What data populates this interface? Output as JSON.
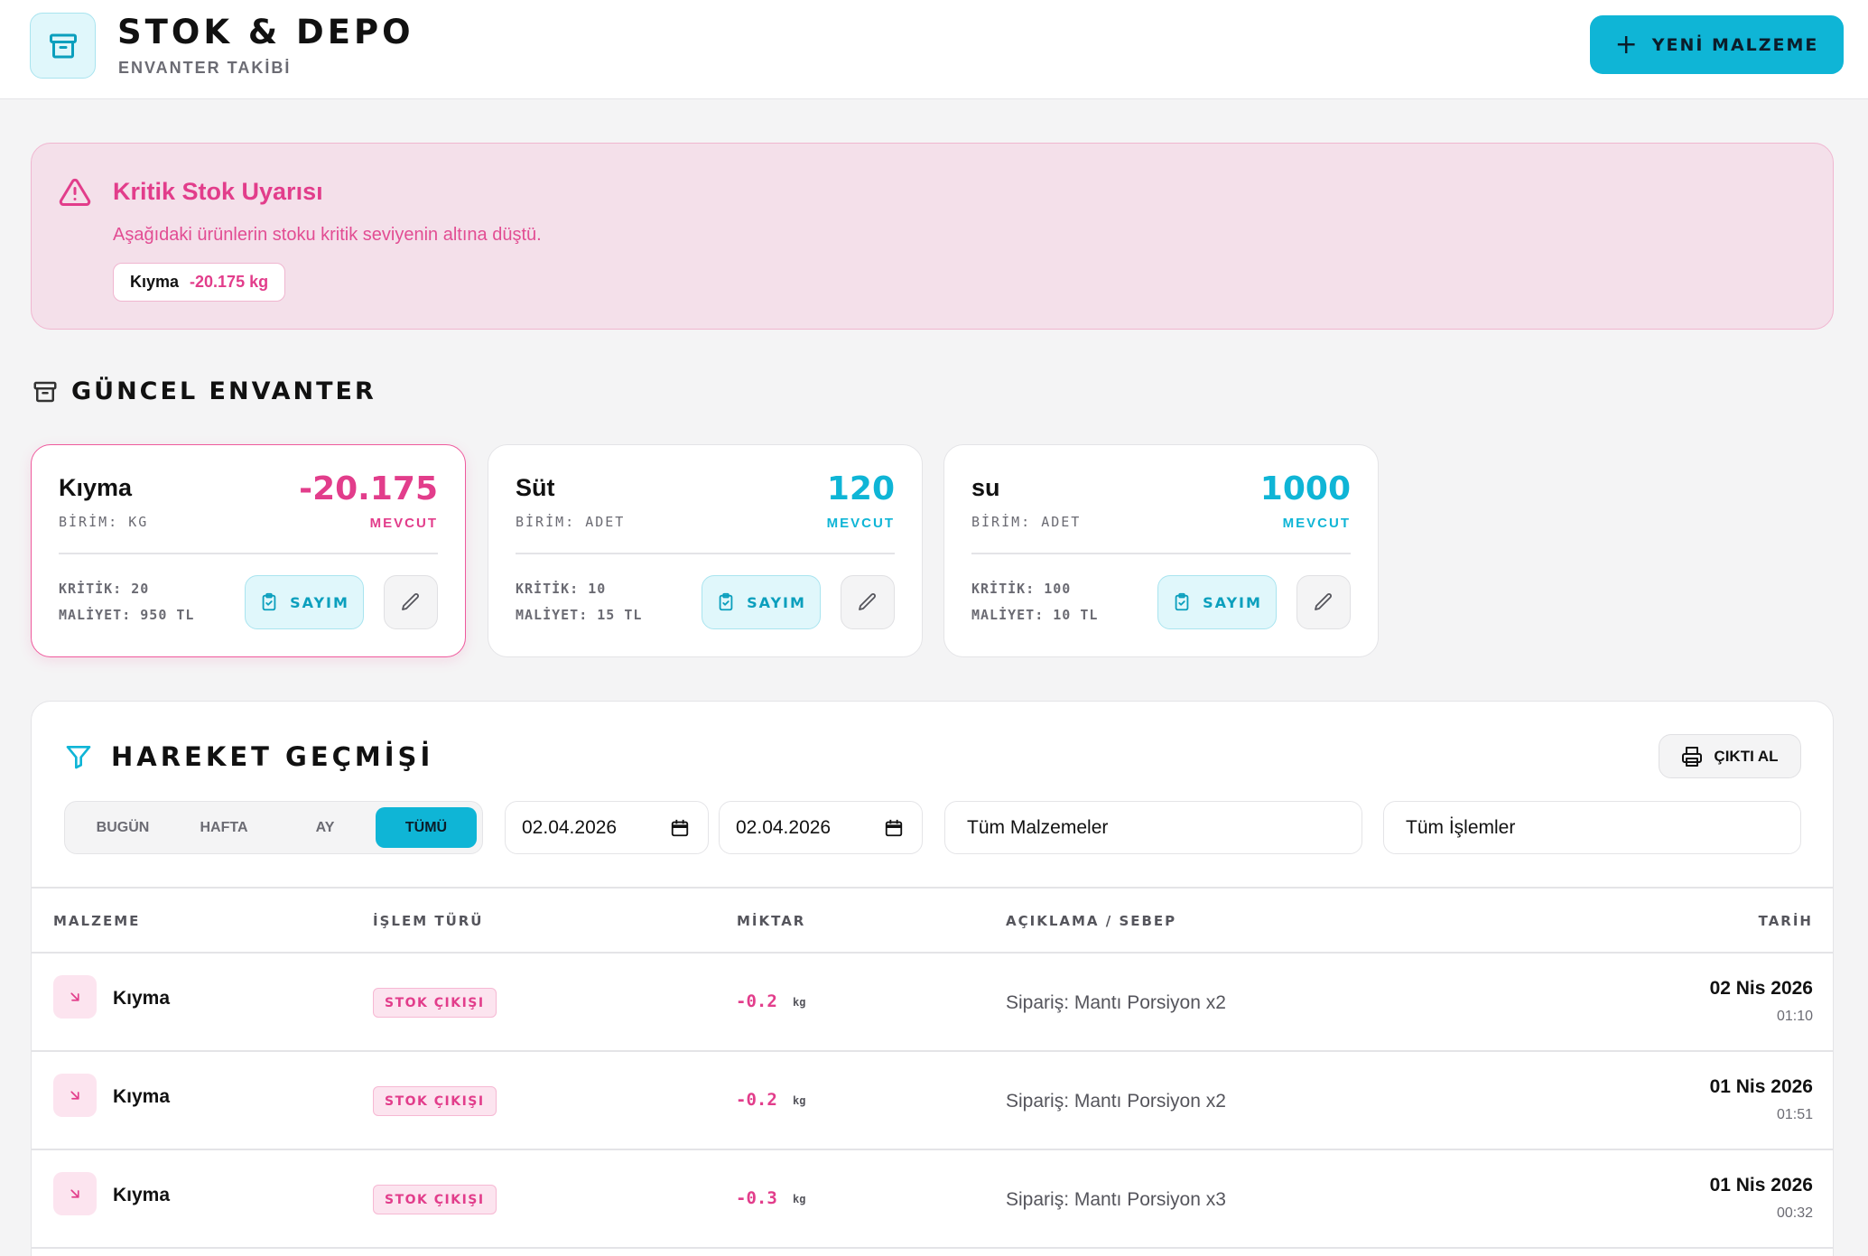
{
  "header": {
    "title": "STOK & DEPO",
    "subtitle": "ENVANTER TAKİBİ",
    "new_button": "YENİ MALZEME"
  },
  "alert": {
    "title": "Kritik Stok Uyarısı",
    "message": "Aşağıdaki ürünlerin stoku kritik seviyenin altına düştü.",
    "items": [
      {
        "name": "Kıyma",
        "value": "-20.175 kg"
      }
    ]
  },
  "inventory": {
    "title": "GÜNCEL ENVANTER",
    "cards": [
      {
        "name": "Kıyma",
        "unit": "BİRİM: KG",
        "qty": "-20.175",
        "qty_label": "MEVCUT",
        "critical": "KRİTİK: 20",
        "cost": "MALİYET: 950 TL",
        "count_label": "SAYIM"
      },
      {
        "name": "Süt",
        "unit": "BİRİM: ADET",
        "qty": "120",
        "qty_label": "MEVCUT",
        "critical": "KRİTİK: 10",
        "cost": "MALİYET: 15 TL",
        "count_label": "SAYIM"
      },
      {
        "name": "su",
        "unit": "BİRİM: ADET",
        "qty": "1000",
        "qty_label": "MEVCUT",
        "critical": "KRİTİK: 100",
        "cost": "MALİYET: 10 TL",
        "count_label": "SAYIM"
      }
    ]
  },
  "history": {
    "title": "HAREKET GEÇMİŞİ",
    "print_button": "ÇIKTI AL",
    "periods": [
      "BUGÜN",
      "HAFTA",
      "AY",
      "TÜMÜ"
    ],
    "active_period": "TÜMÜ",
    "date_from": "02.04.2026",
    "date_to": "02.04.2026",
    "material_filter": "Tüm Malzemeler",
    "operation_filter": "Tüm İşlemler",
    "columns": [
      "MALZEME",
      "İŞLEM TÜRÜ",
      "MİKTAR",
      "AÇIKLAMA / SEBEP",
      "TARİH"
    ],
    "rows": [
      {
        "name": "Kıyma",
        "type": "STOK ÇIKIŞI",
        "qty": "-0.2",
        "unit": "kg",
        "desc": "Sipariş: Mantı Porsiyon x2",
        "date": "02 Nis 2026",
        "time": "01:10"
      },
      {
        "name": "Kıyma",
        "type": "STOK ÇIKIŞI",
        "qty": "-0.2",
        "unit": "kg",
        "desc": "Sipariş: Mantı Porsiyon x2",
        "date": "01 Nis 2026",
        "time": "01:51"
      },
      {
        "name": "Kıyma",
        "type": "STOK ÇIKIŞI",
        "qty": "-0.3",
        "unit": "kg",
        "desc": "Sipariş: Mantı Porsiyon x3",
        "date": "01 Nis 2026",
        "time": "00:32"
      }
    ]
  },
  "colors": {
    "accent": "#0fb5d6",
    "danger": "#e23d8b"
  }
}
